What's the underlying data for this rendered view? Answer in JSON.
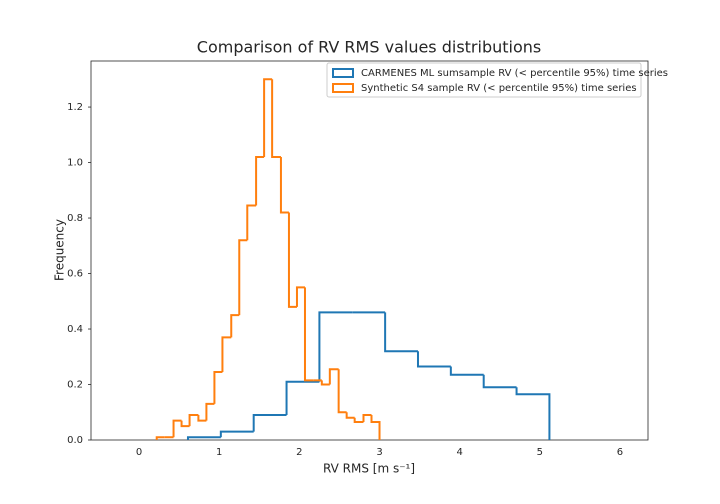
{
  "chart_data": {
    "type": "histogram",
    "title": "Comparison of RV RMS values distributions",
    "xlabel": "RV RMS [m s⁻¹]",
    "ylabel": "Frequency",
    "xlim": [
      -0.6,
      6.35
    ],
    "ylim": [
      0,
      1.366
    ],
    "xticks": [
      0,
      1,
      2,
      3,
      4,
      5,
      6
    ],
    "yticks": [
      {
        "value": 0,
        "label": "0.0"
      },
      0.2,
      0.4,
      0.6,
      0.8,
      {
        "value": 1,
        "label": "1.0"
      },
      1.2
    ],
    "grid": "x",
    "legend": "upper right",
    "series": [
      {
        "name": "CARMENES ML sumsample RV (< percentile 95%) time series",
        "color": "#1f77b4",
        "bins": [
          0.61,
          1.02,
          1.43,
          1.84,
          2.25,
          2.66,
          3.07,
          3.48,
          3.89,
          4.3,
          4.71,
          5.12
        ],
        "values": [
          0.01,
          0.03,
          0.09,
          0.21,
          0.46,
          0.46,
          0.32,
          0.265,
          0.235,
          0.19,
          0.165
        ]
      },
      {
        "name": "Synthetic S4 sample RV (< percentile 95%) time series",
        "color": "#ff7f0e",
        "bins": [
          0.22,
          0.32,
          0.43,
          0.53,
          0.63,
          0.74,
          0.84,
          0.94,
          1.04,
          1.15,
          1.25,
          1.35,
          1.46,
          1.56,
          1.66,
          1.77,
          1.87,
          1.97,
          2.07,
          2.18,
          2.28,
          2.38,
          2.49,
          2.59,
          2.69,
          2.8,
          2.9,
          3.0
        ],
        "values": [
          0.01,
          0.01,
          0.07,
          0.05,
          0.09,
          0.07,
          0.13,
          0.245,
          0.37,
          0.45,
          0.72,
          0.845,
          1.02,
          1.3,
          1.02,
          0.82,
          0.48,
          0.55,
          0.215,
          0.215,
          0.2,
          0.255,
          0.1,
          0.08,
          0.065,
          0.09,
          0.065
        ]
      }
    ]
  }
}
